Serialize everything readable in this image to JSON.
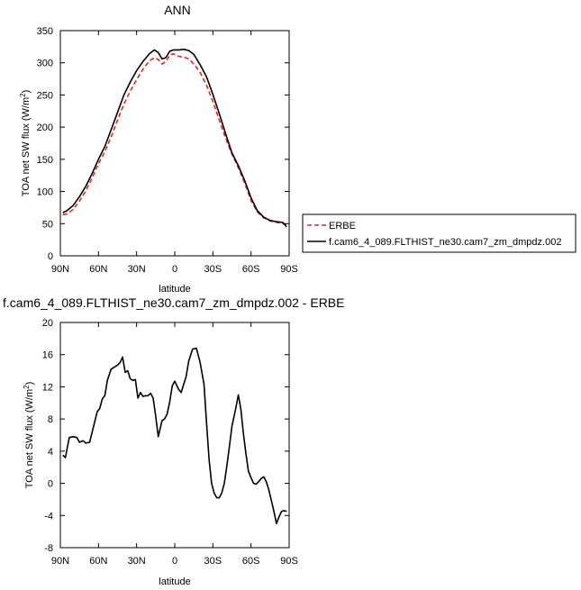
{
  "chart_data": [
    {
      "type": "line",
      "title": "ANN",
      "xlabel": "latitude",
      "ylabel": "TOA net SW flux (W/m²)",
      "ylabel_parts": {
        "text": "TOA net SW flux (W/m",
        "sup": "2",
        "close": ")"
      },
      "xlim": [
        90,
        -90
      ],
      "ylim": [
        0,
        350
      ],
      "x_ticks": [
        90,
        60,
        30,
        0,
        -30,
        -60,
        -90
      ],
      "x_tick_labels": [
        "90N",
        "60N",
        "30N",
        "0",
        "30S",
        "60S",
        "90S"
      ],
      "y_ticks": [
        0,
        50,
        100,
        150,
        200,
        250,
        300,
        350
      ],
      "y_tick_labels": [
        "0",
        "50",
        "100",
        "150",
        "200",
        "250",
        "300",
        "350"
      ],
      "legend_position": "right",
      "series": [
        {
          "name": "ERBE",
          "color": "#e8261f",
          "dash": true,
          "x": [
            88,
            85,
            80,
            75,
            70,
            65,
            60,
            55,
            50,
            45,
            40,
            35,
            30,
            25,
            20,
            16,
            13,
            10,
            7,
            4,
            1,
            -3,
            -7,
            -11,
            -15,
            -20,
            -25,
            -30,
            -35,
            -40,
            -45,
            -50,
            -55,
            -60,
            -65,
            -70,
            -75,
            -80,
            -85,
            -88
          ],
          "y": [
            64,
            65,
            72,
            85,
            101,
            121,
            143,
            162,
            185,
            211,
            236,
            256,
            274,
            290,
            303,
            308,
            305,
            298,
            302,
            312,
            314,
            310,
            309,
            306,
            298,
            285,
            265,
            240,
            211,
            183,
            158,
            137,
            113,
            86,
            68,
            59,
            54,
            52,
            50,
            49
          ]
        },
        {
          "name": "f.cam6_4_089.FLTHIST_ne30.cam7_zm_dmpdz.002",
          "color": "#000000",
          "dash": false,
          "x": [
            88,
            85,
            80,
            75,
            70,
            65,
            60,
            55,
            50,
            45,
            40,
            35,
            30,
            25,
            20,
            16,
            13,
            10,
            7,
            4,
            1,
            -3,
            -7,
            -11,
            -15,
            -20,
            -25,
            -30,
            -35,
            -40,
            -45,
            -50,
            -55,
            -60,
            -65,
            -70,
            -75,
            -80,
            -85,
            -88
          ],
          "y": [
            67,
            70,
            78,
            92,
            108,
            128,
            150,
            170,
            196,
            223,
            250,
            270,
            288,
            302,
            314,
            320,
            316,
            306,
            308,
            318,
            320,
            320,
            321,
            319,
            313,
            297,
            278,
            251,
            221,
            190,
            160,
            140,
            117,
            90,
            70,
            60,
            55,
            53,
            52,
            45
          ]
        }
      ]
    },
    {
      "type": "line",
      "title": "f.cam6_4_089.FLTHIST_ne30.cam7_zm_dmpdz.002 - ERBE",
      "xlabel": "latitude",
      "ylabel": "TOA net SW flux (W/m²)",
      "ylabel_parts": {
        "text": "TOA net SW flux (W/m",
        "sup": "2",
        "close": ")"
      },
      "xlim": [
        90,
        -90
      ],
      "ylim": [
        -8,
        20
      ],
      "x_ticks": [
        90,
        60,
        30,
        0,
        -30,
        -60,
        -90
      ],
      "x_tick_labels": [
        "90N",
        "60N",
        "30N",
        "0",
        "30S",
        "60S",
        "90S"
      ],
      "y_ticks": [
        -8,
        -4,
        0,
        4,
        8,
        12,
        16,
        20
      ],
      "y_tick_labels": [
        "-8",
        "-4",
        "0",
        "4",
        "8",
        "12",
        "16",
        "20"
      ],
      "series": [
        {
          "color": "#000000",
          "x": [
            88,
            86,
            83,
            80,
            77,
            75,
            72,
            70,
            67,
            64,
            61,
            59,
            57,
            55,
            53,
            50,
            47,
            45,
            43,
            41,
            39,
            37,
            35,
            33,
            31,
            29,
            27,
            25,
            23,
            21,
            19,
            17,
            15,
            13,
            10,
            8,
            6,
            4,
            2,
            0,
            -3,
            -5,
            -7,
            -9,
            -11,
            -14,
            -17,
            -20,
            -23,
            -25,
            -27,
            -29,
            -31,
            -33,
            -35,
            -37,
            -39,
            -41,
            -43,
            -45,
            -48,
            -50,
            -52,
            -54,
            -56,
            -58,
            -60,
            -62,
            -64,
            -66,
            -68,
            -70,
            -72,
            -74,
            -76,
            -78,
            -80,
            -82,
            -84,
            -86,
            -88
          ],
          "y": [
            3.5,
            3.2,
            5.7,
            5.8,
            5.7,
            5.1,
            5.3,
            5.0,
            5.1,
            7.0,
            8.9,
            9.3,
            10.5,
            10.9,
            12.8,
            14.2,
            14.5,
            14.7,
            15.0,
            15.7,
            13.8,
            14.0,
            13.0,
            12.8,
            12.9,
            10.6,
            11.3,
            10.8,
            10.9,
            10.9,
            11.2,
            10.6,
            8.4,
            5.8,
            7.8,
            8.0,
            8.6,
            10.1,
            12.1,
            12.7,
            11.7,
            11.3,
            12.3,
            13.3,
            15.2,
            16.7,
            16.8,
            15.0,
            12.3,
            7.5,
            3.0,
            0.0,
            -1.2,
            -1.8,
            -1.8,
            -1.2,
            0.0,
            2.2,
            4.6,
            7.1,
            9.3,
            11.0,
            9.2,
            6.2,
            3.7,
            1.5,
            0.7,
            0.0,
            -0.1,
            0.2,
            0.6,
            0.8,
            0.2,
            -0.8,
            -2.1,
            -3.5,
            -5.0,
            -4.2,
            -3.5,
            -3.4,
            -3.5
          ]
        }
      ]
    }
  ]
}
